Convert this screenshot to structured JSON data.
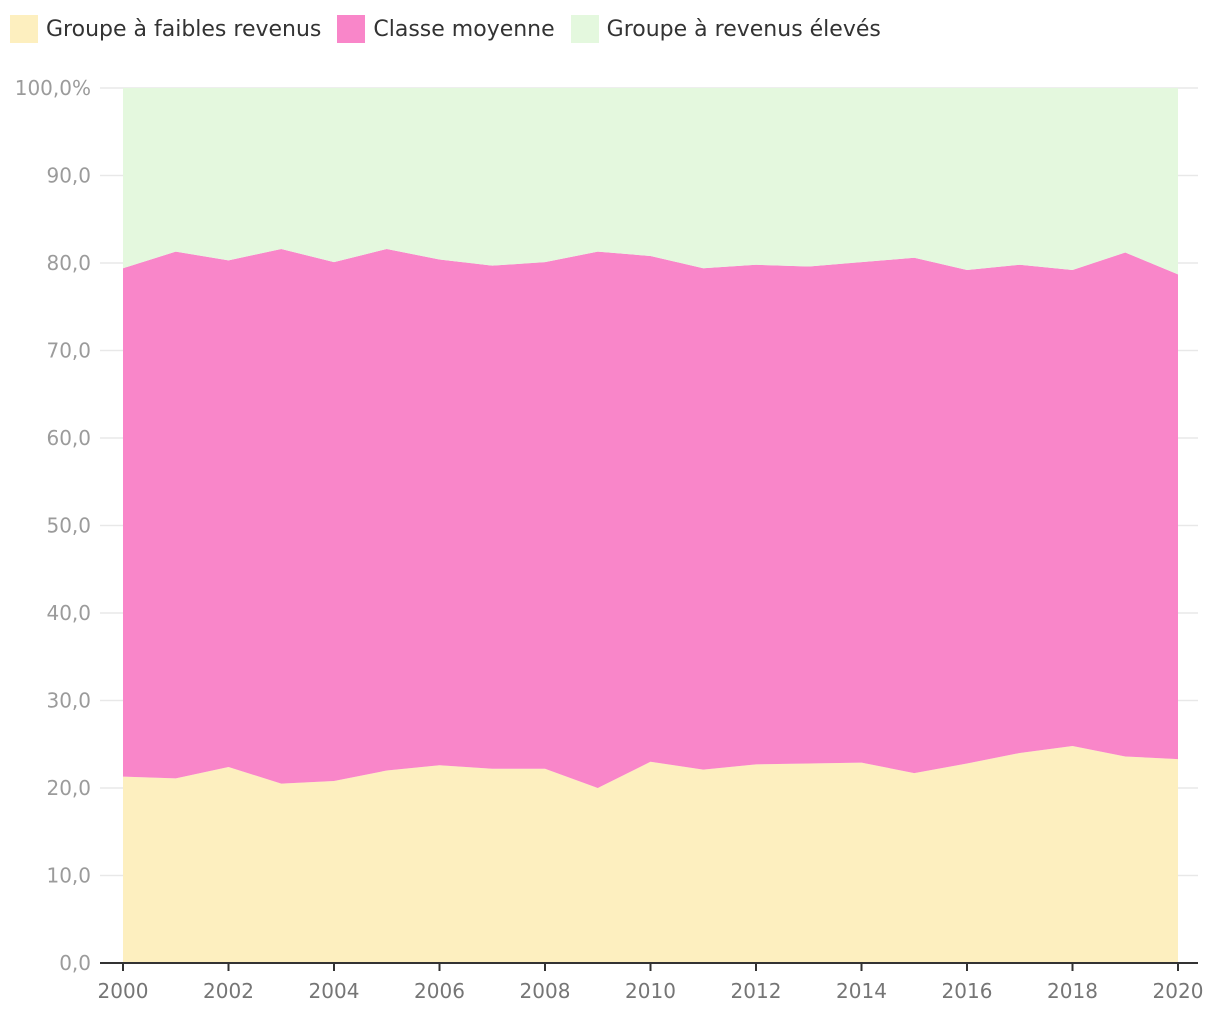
{
  "chart_data": {
    "type": "area",
    "stacked": true,
    "legend_position": "top-left",
    "grid": true,
    "x": [
      2000,
      2001,
      2002,
      2003,
      2004,
      2005,
      2006,
      2007,
      2008,
      2009,
      2010,
      2011,
      2012,
      2013,
      2014,
      2015,
      2016,
      2017,
      2018,
      2019,
      2020
    ],
    "xticks": [
      "2000",
      "2002",
      "2004",
      "2006",
      "2008",
      "2010",
      "2012",
      "2014",
      "2016",
      "2018",
      "2020"
    ],
    "yticks": [
      "0,0",
      "10,0",
      "20,0",
      "30,0",
      "40,0",
      "50,0",
      "60,0",
      "70,0",
      "80,0",
      "90,0",
      "100,0%"
    ],
    "ylim": [
      0,
      100
    ],
    "series": [
      {
        "name": "Groupe à faibles revenus",
        "color": "#fdefbf",
        "values": [
          21.3,
          21.1,
          22.4,
          20.5,
          20.8,
          22.0,
          22.6,
          22.2,
          22.2,
          20.0,
          23.0,
          22.1,
          22.7,
          22.8,
          22.9,
          21.7,
          22.8,
          24.0,
          24.8,
          23.6,
          23.3
        ]
      },
      {
        "name": "Classe moyenne",
        "color": "#f986c9",
        "values": [
          58.1,
          60.2,
          57.9,
          61.1,
          59.3,
          59.6,
          57.8,
          57.5,
          57.9,
          61.3,
          57.8,
          57.3,
          57.1,
          56.8,
          57.2,
          58.9,
          56.4,
          55.8,
          54.4,
          57.6,
          55.4
        ]
      },
      {
        "name": "Groupe à revenus élevés",
        "color": "#e4f8de",
        "values": [
          20.6,
          18.7,
          19.7,
          18.4,
          19.9,
          18.4,
          19.6,
          20.3,
          19.9,
          18.7,
          19.2,
          20.6,
          20.2,
          20.4,
          19.9,
          19.4,
          20.8,
          20.2,
          20.8,
          18.8,
          21.3
        ]
      }
    ]
  }
}
